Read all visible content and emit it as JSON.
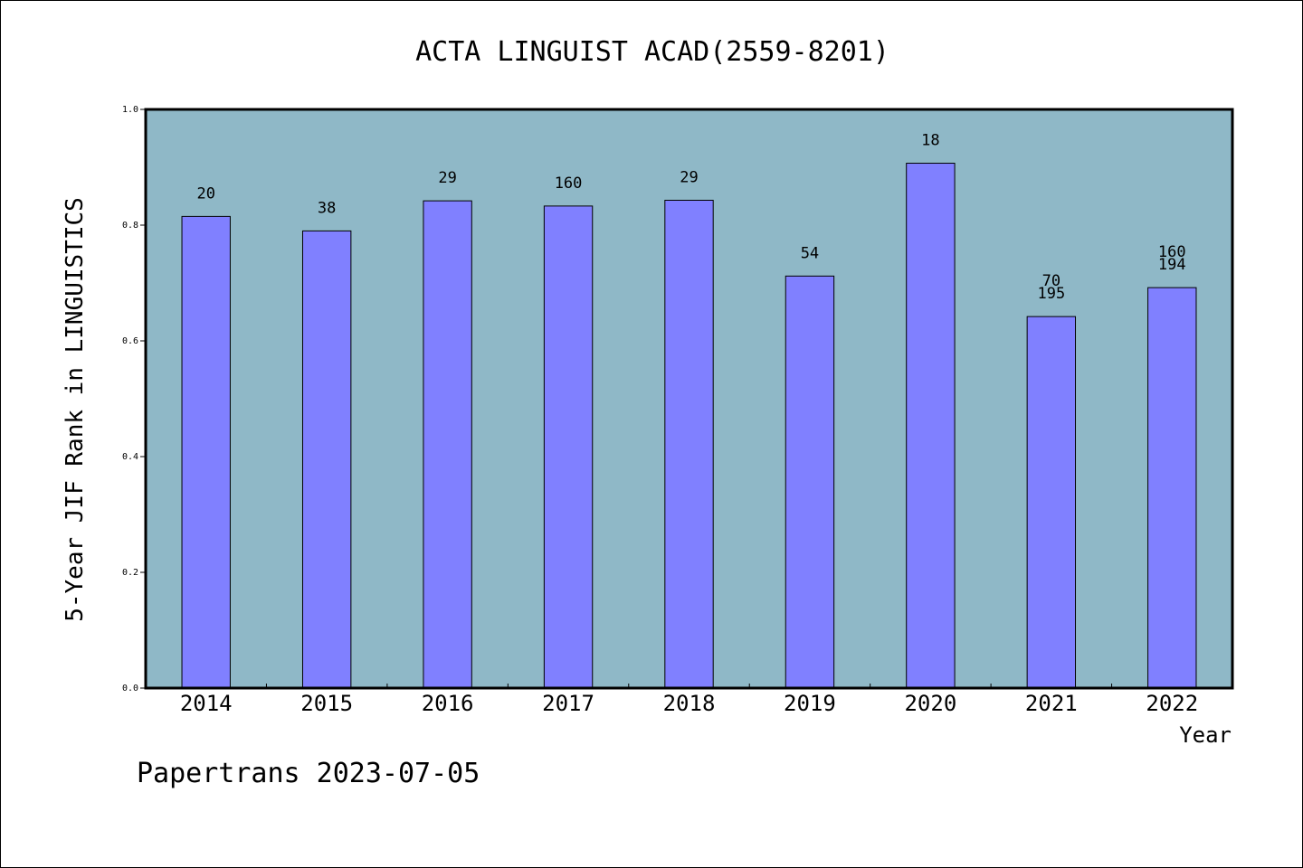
{
  "chart_data": {
    "type": "bar",
    "title": "ACTA LINGUIST ACAD(2559-8201)",
    "xlabel": "Year",
    "ylabel": "5-Year JIF Rank in LINGUISTICS",
    "categories": [
      "2014",
      "2015",
      "2016",
      "2017",
      "2018",
      "2019",
      "2020",
      "2021",
      "2022"
    ],
    "values": [
      0.815,
      0.79,
      0.842,
      0.833,
      0.843,
      0.712,
      0.907,
      0.642,
      0.692
    ],
    "bar_labels": [
      [
        "20"
      ],
      [
        "38"
      ],
      [
        "29"
      ],
      [
        "160"
      ],
      [
        "29"
      ],
      [
        "54"
      ],
      [
        "18"
      ],
      [
        "70",
        "195"
      ],
      [
        "160",
        "194"
      ]
    ],
    "ylim": [
      0,
      1.0
    ],
    "yticks": [
      "0.0",
      "0.2",
      "0.4",
      "0.6",
      "0.8",
      "1.0"
    ],
    "grid": false,
    "colors": {
      "plot_background": "#8fb8c7",
      "bar_fill": "#8080ff",
      "bar_edge": "#000000"
    }
  },
  "footer": {
    "text": "Papertrans 2023-07-05"
  }
}
